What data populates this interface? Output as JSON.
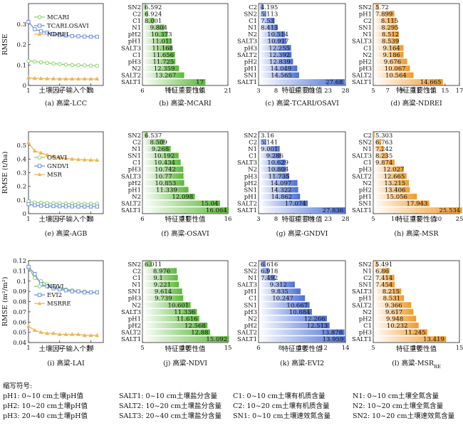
{
  "chart_data": [
    {
      "type": "line",
      "caption": "(a) 高粱-LCC",
      "xlabel": "土壤因子输入个数",
      "ylabel": "RMSE",
      "x": [
        1,
        2,
        3,
        4,
        5,
        6,
        7,
        8,
        9,
        10,
        11,
        12
      ],
      "xlim": [
        1,
        13
      ],
      "ylim": [
        0,
        0.4
      ],
      "xticks": [
        1,
        6,
        11
      ],
      "yticks": [
        0,
        0.1,
        0.2,
        0.3
      ],
      "legend": "top-right",
      "series": [
        {
          "name": "MCARI",
          "color": "#8ed06a",
          "marker": "circle",
          "values": [
            0.12,
            0.117,
            0.113,
            0.11,
            0.107,
            0.104,
            0.102,
            0.1,
            0.099,
            0.098,
            0.097,
            0.096
          ]
        },
        {
          "name": "TCARI.OSAVI",
          "color": "#6d8fe0",
          "marker": "square",
          "values": [
            0.31,
            0.275,
            0.265,
            0.258,
            0.252,
            0.247,
            0.244,
            0.241,
            0.24,
            0.239,
            0.238,
            0.238
          ]
        },
        {
          "name": "NDREI",
          "color": "#f2b450",
          "marker": "triangle",
          "values": [
            0.038,
            0.035,
            0.034,
            0.033,
            0.033,
            0.032,
            0.032,
            0.032,
            0.032,
            0.032,
            0.032,
            0.032
          ]
        }
      ]
    },
    {
      "type": "bar",
      "caption": "(b) 高粱-MCARI",
      "xlabel": "特征重要性值",
      "palette": "green",
      "xlim": [
        6,
        21
      ],
      "xticks": [
        6,
        11,
        16,
        21
      ],
      "categories": [
        "SN2",
        "C2",
        "C1",
        "N1",
        "pH2",
        "pH1",
        "SALT3",
        "C1",
        "pH3",
        "N2",
        "SALT2",
        "SALT1"
      ],
      "values": [
        6.592,
        6.924,
        8.001,
        9.804,
        10.373,
        11.011,
        11.168,
        11.656,
        11.725,
        12.359,
        13.267,
        17
      ],
      "labels": [
        "6.592",
        "6.924",
        "8.001",
        "9.804",
        "10.373",
        "11.011",
        "11.168",
        "11.656",
        "11.725",
        "12.359",
        "13.267",
        "17"
      ]
    },
    {
      "type": "bar",
      "caption": "(c) 高粱-TCARI/OSAVI",
      "xlabel": "特征重要性值",
      "palette": "blue",
      "xlim": [
        3,
        28
      ],
      "xticks": [
        3,
        8,
        13,
        18,
        23,
        28
      ],
      "categories": [
        "C2",
        "SN2",
        "C1",
        "N1",
        "N2",
        "SALT3",
        "pH3",
        "SALT2",
        "pH2",
        "pH1",
        "SN1",
        "SALT1"
      ],
      "values": [
        4.195,
        5.113,
        7.53,
        8.413,
        10.514,
        10.917,
        12.255,
        12.392,
        12.839,
        14.049,
        14.565,
        27.68
      ],
      "labels": [
        "4.195",
        "5.113",
        "7.53",
        "8.413",
        "10.514",
        "10.917",
        "12.255",
        "12.392",
        "12.839",
        "14.049",
        "14.565",
        "27.68"
      ]
    },
    {
      "type": "bar",
      "caption": "(d) 高粱-NDREI",
      "xlabel": "特征重要性值",
      "palette": "orange",
      "xlim": [
        5,
        17
      ],
      "xticks": [
        5,
        7,
        9,
        11,
        13,
        15,
        17
      ],
      "categories": [
        "SN2",
        "pH1",
        "C2",
        "SN1",
        "N1",
        "SALT3",
        "C1",
        "N2",
        "pH2",
        "pH3",
        "SALT2",
        "SALT1"
      ],
      "values": [
        5.72,
        7.899,
        8.115,
        8.295,
        8.512,
        8.539,
        9.164,
        9.186,
        9.676,
        10.067,
        10.564,
        14.665
      ],
      "labels": [
        "5.72",
        "7.899",
        "8.115",
        "8.295",
        "8.512",
        "8.539",
        "9.164",
        "9.186",
        "9.676",
        "10.067",
        "10.564",
        "14.665"
      ]
    },
    {
      "type": "line",
      "caption": "(e) 高粱-AGB",
      "xlabel": "土壤因子输入个数",
      "ylabel": "RMSE (t/ha)",
      "x": [
        1,
        2,
        3,
        4,
        5,
        6,
        7,
        8,
        9,
        10,
        11,
        12
      ],
      "xlim": [
        1,
        13
      ],
      "ylim": [
        0,
        0.6
      ],
      "xticks": [
        1,
        6,
        11
      ],
      "yticks": [
        0,
        0.1,
        0.2,
        0.3,
        0.4,
        0.5
      ],
      "legend": "center-right",
      "series": [
        {
          "name": "OSAVI",
          "color": "#8ed06a",
          "marker": "circle",
          "values": [
            0.09,
            0.082,
            0.08,
            0.078,
            0.077,
            0.076,
            0.075,
            0.074,
            0.074,
            0.073,
            0.073,
            0.073
          ]
        },
        {
          "name": "GNDVI",
          "color": "#6d8fe0",
          "marker": "square",
          "values": [
            0.07,
            0.061,
            0.058,
            0.056,
            0.055,
            0.054,
            0.053,
            0.053,
            0.052,
            0.052,
            0.052,
            0.052
          ]
        },
        {
          "name": "MSR",
          "color": "#f2b450",
          "marker": "triangle",
          "values": [
            0.52,
            0.46,
            0.445,
            0.43,
            0.42,
            0.41,
            0.405,
            0.4,
            0.397,
            0.395,
            0.393,
            0.392
          ]
        }
      ]
    },
    {
      "type": "bar",
      "caption": "(f) 高粱-OSAVI",
      "xlabel": "特征重要性值",
      "palette": "green",
      "xlim": [
        6,
        16
      ],
      "xticks": [
        6,
        11,
        16
      ],
      "categories": [
        "SN2",
        "C2",
        "N1",
        "SN1",
        "C1",
        "pH3",
        "SALT3",
        "pH2",
        "pH1",
        "N2",
        "SALT2",
        "SALT1"
      ],
      "values": [
        6.537,
        8.509,
        9.268,
        10.192,
        10.434,
        10.742,
        10.77,
        10.853,
        11.339,
        12.098,
        15.04,
        16.064
      ],
      "labels": [
        "6.537",
        "8.509",
        "9.268",
        "10.192",
        "10.434",
        "10.742",
        "10.77",
        "10.853",
        "11.339",
        "12.098",
        "15.04",
        "16.064"
      ]
    },
    {
      "type": "bar",
      "caption": "(g) 高粱-GNDVI",
      "xlabel": "特征重要性值",
      "palette": "blue",
      "xlim": [
        3,
        28
      ],
      "xticks": [
        3,
        8,
        13,
        18,
        23,
        28
      ],
      "categories": [
        "SN2",
        "C2",
        "N1",
        "C1",
        "SALT3",
        "N2",
        "pH3",
        "pH2",
        "SN1",
        "pH1",
        "SALT2",
        "SALT1"
      ],
      "values": [
        3.16,
        5.141,
        9.001,
        9.286,
        10.629,
        10.804,
        11.735,
        14.097,
        14.322,
        14.862,
        17.074,
        27.836
      ],
      "labels": [
        "3.16",
        "5.141",
        "9.001",
        "9.286",
        "10.629",
        "10.804",
        "11.735",
        "14.097",
        "14.322",
        "14.862",
        "17.074",
        "27.836"
      ]
    },
    {
      "type": "bar",
      "caption": "(h) 高粱-MSR",
      "xlabel": "特征重要性值",
      "palette": "orange",
      "xlim": [
        5,
        25
      ],
      "xticks": [
        5,
        10,
        15,
        20,
        25
      ],
      "categories": [
        "C2",
        "SN2",
        "N1",
        "SALT3",
        "C1",
        "pH3",
        "SALT2",
        "N2",
        "pH2",
        "pH1",
        "SN1",
        "SALT1"
      ],
      "values": [
        5.303,
        6.763,
        7.242,
        8.235,
        9.874,
        12.027,
        12.665,
        13.215,
        13.406,
        15.056,
        17.943,
        25.534
      ],
      "labels": [
        "5.303",
        "6.763",
        "7.242",
        "8.235",
        "9.874",
        "12.027",
        "12.665",
        "13.215",
        "13.406",
        "15.056",
        "17.943",
        "25.534"
      ]
    },
    {
      "type": "line",
      "caption": "(i) 高粱-LAI",
      "xlabel": "土壤因子输入个数",
      "ylabel": "RMSE (m²/m²)",
      "x": [
        1,
        2,
        3,
        4,
        5,
        6,
        7,
        8,
        9,
        10,
        11,
        12
      ],
      "xlim": [
        1,
        13
      ],
      "ylim": [
        0.04,
        0.12
      ],
      "xticks": [
        1,
        6,
        11
      ],
      "yticks": [
        0.04,
        0.05,
        0.06,
        0.07,
        0.08,
        0.09,
        0.1,
        0.11,
        0.12
      ],
      "legend": "center-right",
      "series": [
        {
          "name": "NDVI",
          "color": "#8ed06a",
          "marker": "circle",
          "values": [
            0.113,
            0.103,
            0.1,
            0.097,
            0.095,
            0.093,
            0.092,
            0.091,
            0.09,
            0.09,
            0.089,
            0.089
          ]
        },
        {
          "name": "EVI2",
          "color": "#6d8fe0",
          "marker": "square",
          "values": [
            0.114,
            0.107,
            0.097,
            0.095,
            0.093,
            0.092,
            0.091,
            0.09,
            0.09,
            0.089,
            0.089,
            0.089
          ]
        },
        {
          "name": "MSRRE",
          "color": "#f2b450",
          "marker": "triangle",
          "values": [
            0.056,
            0.052,
            0.05,
            0.049,
            0.049,
            0.048,
            0.048,
            0.048,
            0.048,
            0.047,
            0.047,
            0.047
          ]
        }
      ]
    },
    {
      "type": "bar",
      "caption": "(j) 高粱-NDVI",
      "xlabel": "特征重要性值",
      "palette": "green",
      "xlim": [
        5,
        15
      ],
      "xticks": [
        5,
        10,
        15
      ],
      "categories": [
        "SN2",
        "C2",
        "C1",
        "N1",
        "SN1",
        "pH3",
        "N2",
        "SALT3",
        "pH1",
        "pH2",
        "SALT2",
        "SALT1"
      ],
      "values": [
        6.011,
        8.976,
        9.1,
        9.221,
        9.614,
        9.739,
        10.601,
        11.336,
        11.616,
        12.568,
        12.88,
        15.092
      ],
      "labels": [
        "6.011",
        "8.976",
        "9.1",
        "9.221",
        "9.614",
        "9.739",
        "10.601",
        "11.336",
        "11.616",
        "12.568",
        "12.88",
        "15.092"
      ]
    },
    {
      "type": "bar",
      "caption": "(k) 高粱-EVI2",
      "xlabel": "特征重要性值",
      "palette": "blue",
      "xlim": [
        6,
        14
      ],
      "xticks": [
        6,
        8,
        10,
        12,
        14
      ],
      "categories": [
        "C2",
        "SN2",
        "N1",
        "SALT3",
        "pH1",
        "C1",
        "SN1",
        "pH3",
        "N2",
        "pH2",
        "SALT2",
        "SALT1"
      ],
      "values": [
        6.616,
        6.918,
        7.492,
        9.312,
        9.835,
        10.247,
        10.667,
        10.884,
        12.266,
        12.513,
        13.878,
        13.959
      ],
      "labels": [
        "6.616",
        "6.918",
        "7.492",
        "9.312",
        "9.835",
        "10.247",
        "10.667",
        "10.884",
        "12.266",
        "12.513",
        "13.878",
        "13.959"
      ]
    },
    {
      "type": "bar",
      "caption": "(l) 高粱-MSR",
      "caption_sub": "RE",
      "xlabel": "特征重要性值",
      "palette": "orange",
      "xlim": [
        5,
        15
      ],
      "xticks": [
        5,
        10,
        15
      ],
      "categories": [
        "SN2",
        "N1",
        "C2",
        "SN1",
        "SALT3",
        "pH1",
        "SALT2",
        "N2",
        "pH2",
        "C1",
        "pH3",
        "SALT1"
      ],
      "values": [
        5.491,
        6.86,
        7.414,
        7.454,
        8.215,
        8.531,
        9.366,
        9.617,
        9.948,
        10.232,
        11.245,
        13.419
      ],
      "labels": [
        "5.491",
        "6.86",
        "7.414",
        "7.454",
        "8.215",
        "8.531",
        "9.366",
        "9.617",
        "9.948",
        "10.232",
        "11.245",
        "13.419"
      ]
    }
  ],
  "notes": {
    "title": "缩写符号:",
    "rows": [
      [
        "pH1: 0~10 cm土壤pH值",
        "SALT1: 0~10 cm土壤盐分含量",
        "C1: 0~10 cm土壤有机质含量",
        "N1: 0~10 cm土壤全氮含量"
      ],
      [
        "pH2: 10~20 cm土壤pH值",
        "SALT2: 10~20 cm土壤盐分含量",
        "C2: 10~20 cm土壤有机质含量",
        "N2: 10~20 cm土壤全氮含量"
      ],
      [
        "pH3: 20~40 cm土壤pH值",
        "SALT3: 20~40 cm土壤盐分含量",
        "SN1: 0~10 cm土壤速效氮含量",
        "SN2: 10~20 cm土壤速效氮含量"
      ]
    ]
  },
  "colors": {
    "green": "#6cc24a",
    "blue": "#5578d8",
    "orange": "#f0a53c"
  }
}
